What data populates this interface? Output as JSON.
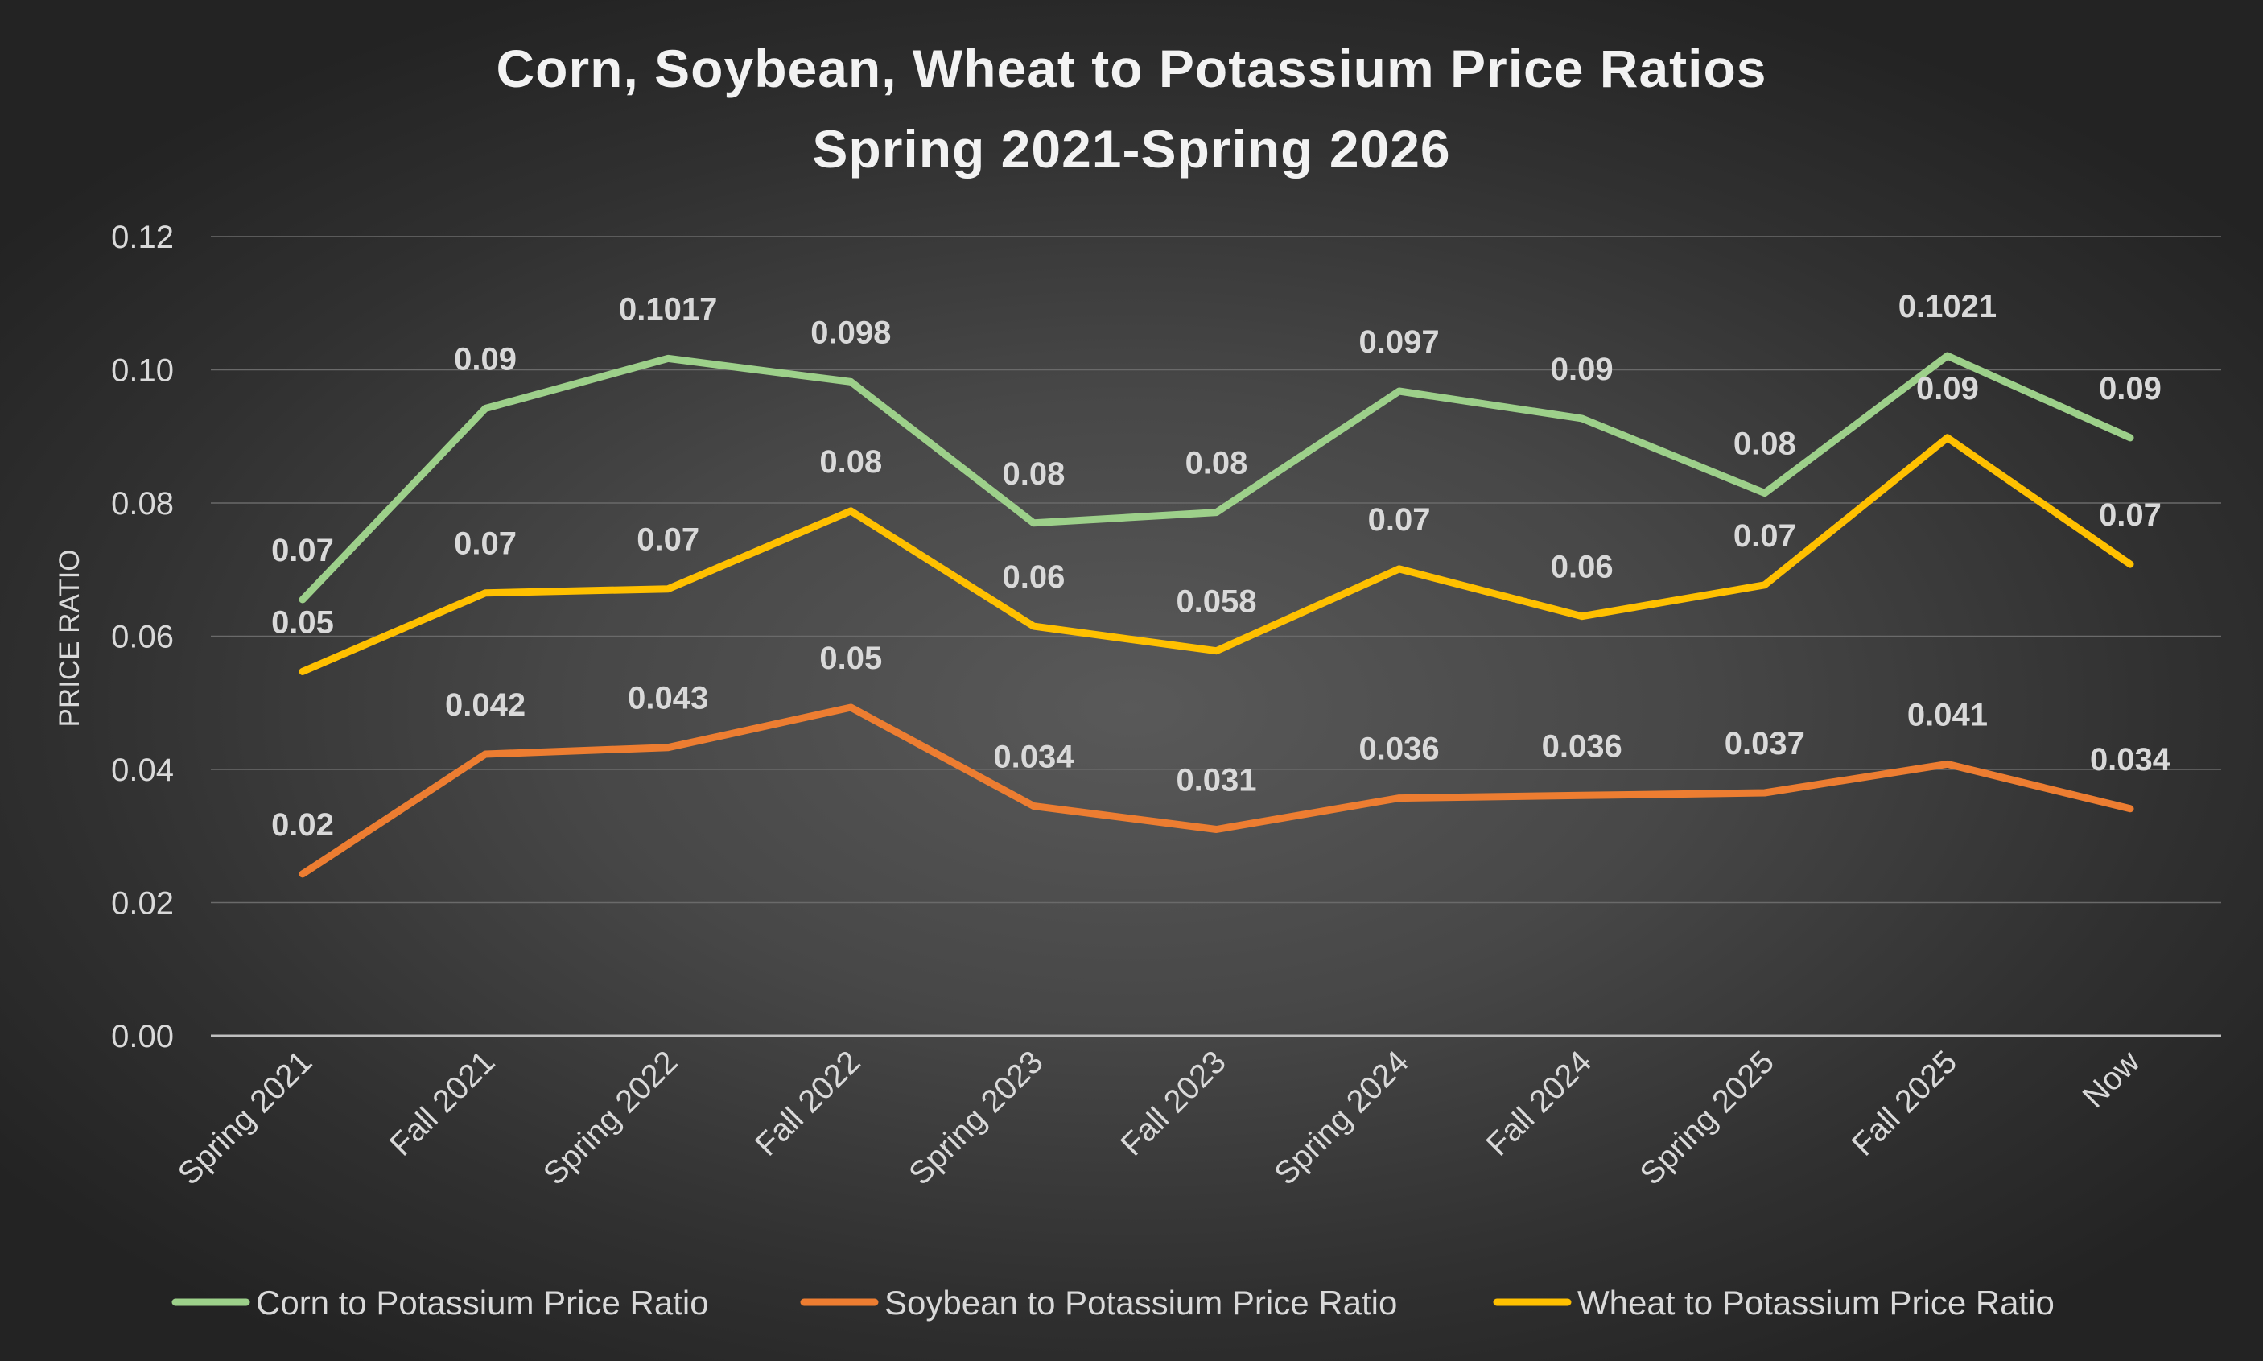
{
  "chart_data": {
    "type": "line",
    "title_lines": [
      "Corn, Soybean, Wheat to Potassium Price Ratios",
      "Spring 2021-Spring 2026"
    ],
    "xlabel": "",
    "ylabel": "PRICE RATIO",
    "ylim": [
      0,
      0.12
    ],
    "yticks": [
      "0.00",
      "0.02",
      "0.04",
      "0.06",
      "0.08",
      "0.10",
      "0.12"
    ],
    "ytick_values": [
      0,
      0.02,
      0.04,
      0.06,
      0.08,
      0.1,
      0.12
    ],
    "grid": true,
    "legend_position": "bottom",
    "categories": [
      "Spring 2021",
      "Fall 2021",
      "Spring 2022",
      "Fall 2022",
      "Spring 2023",
      "Fall 2023",
      "Spring 2024",
      "Fall 2024",
      "Spring 2025",
      "Fall 2025",
      "Now"
    ],
    "series": [
      {
        "name": "Corn to Potassium Price Ratio",
        "color": "#9dd08a",
        "values": [
          0.0655,
          0.0942,
          0.1017,
          0.0982,
          0.077,
          0.0786,
          0.0968,
          0.0927,
          0.0815,
          0.1021,
          0.0898
        ],
        "labels": [
          "0.07",
          "0.09",
          "0.1017",
          "0.098",
          "0.08",
          "0.08",
          "0.097",
          "0.09",
          "0.08",
          "0.1021",
          "0.09"
        ]
      },
      {
        "name": "Soybean to Potassium Price Ratio",
        "color": "#ed7d31",
        "values": [
          0.0243,
          0.0423,
          0.0433,
          0.0493,
          0.0345,
          0.031,
          0.0357,
          0.0361,
          0.0365,
          0.0408,
          0.0341
        ],
        "labels": [
          "0.02",
          "0.042",
          "0.043",
          "0.05",
          "0.034",
          "0.031",
          "0.036",
          "0.036",
          "0.037",
          "0.041",
          "0.034"
        ]
      },
      {
        "name": "Wheat to Potassium Price Ratio",
        "color": "#ffc000",
        "values": [
          0.0547,
          0.0665,
          0.0671,
          0.0788,
          0.0615,
          0.0578,
          0.0701,
          0.063,
          0.0677,
          0.0898,
          0.0708
        ],
        "labels": [
          "0.05",
          "0.07",
          "0.07",
          "0.08",
          "0.06",
          "0.058",
          "0.07",
          "0.06",
          "0.07",
          "0.09",
          "0.07"
        ]
      }
    ]
  }
}
